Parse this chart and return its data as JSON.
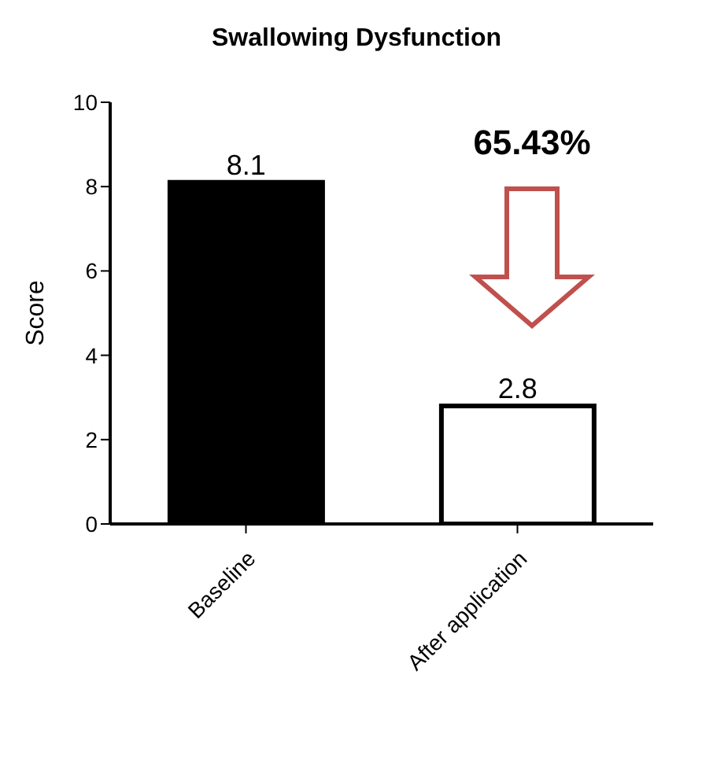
{
  "chart_data": {
    "type": "bar",
    "title": "Swallowing Dysfunction",
    "ylabel": "Score",
    "categories": [
      "Baseline",
      "After application"
    ],
    "values": [
      8.1,
      2.8
    ],
    "colors": [
      "#000000",
      "#ffffff"
    ],
    "ylim": [
      0,
      10
    ],
    "yticks": [
      0,
      2,
      4,
      6,
      8,
      10
    ],
    "grid": false,
    "data_labels": true,
    "annotations": [
      "65.43%"
    ]
  }
}
